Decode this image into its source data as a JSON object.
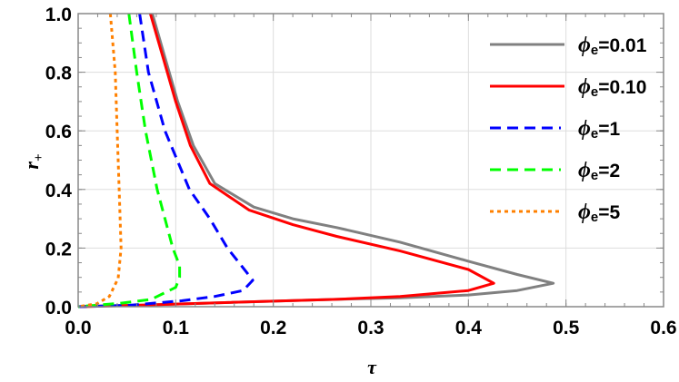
{
  "chart_data": {
    "type": "line",
    "title": "",
    "xlabel": "τ",
    "ylabel": "r",
    "ylabel_subscript": "+",
    "xlim": [
      0,
      0.6
    ],
    "ylim": [
      0,
      1.0
    ],
    "xticks": [
      "0.0",
      "0.1",
      "0.2",
      "0.3",
      "0.4",
      "0.5",
      "0.6"
    ],
    "yticks": [
      "0.0",
      "0.2",
      "0.4",
      "0.6",
      "0.8",
      "1.0"
    ],
    "grid": true,
    "legend_position": "top-right",
    "series": [
      {
        "name": "ϕe=0.01",
        "symbol": "ϕ",
        "sub": "e",
        "value": "=0.01",
        "color": "#808080",
        "style": "solid",
        "points": [
          [
            0.076,
            1.0
          ],
          [
            0.089,
            0.85
          ],
          [
            0.102,
            0.7
          ],
          [
            0.118,
            0.55
          ],
          [
            0.14,
            0.42
          ],
          [
            0.18,
            0.34
          ],
          [
            0.22,
            0.3
          ],
          [
            0.265,
            0.27
          ],
          [
            0.33,
            0.22
          ],
          [
            0.4,
            0.155
          ],
          [
            0.45,
            0.11
          ],
          [
            0.487,
            0.08
          ],
          [
            0.45,
            0.055
          ],
          [
            0.4,
            0.04
          ],
          [
            0.33,
            0.03
          ],
          [
            0.265,
            0.025
          ],
          [
            0.15,
            0.014
          ],
          [
            0.07,
            0.006
          ],
          [
            0,
            0
          ]
        ]
      },
      {
        "name": "ϕe=0.10",
        "symbol": "ϕ",
        "sub": "e",
        "value": "=0.10",
        "color": "#ff0000",
        "style": "solid",
        "points": [
          [
            0.074,
            1.0
          ],
          [
            0.087,
            0.85
          ],
          [
            0.1,
            0.7
          ],
          [
            0.115,
            0.55
          ],
          [
            0.135,
            0.42
          ],
          [
            0.175,
            0.33
          ],
          [
            0.22,
            0.28
          ],
          [
            0.265,
            0.24
          ],
          [
            0.33,
            0.19
          ],
          [
            0.4,
            0.127
          ],
          [
            0.426,
            0.08
          ],
          [
            0.4,
            0.055
          ],
          [
            0.33,
            0.035
          ],
          [
            0.265,
            0.025
          ],
          [
            0.15,
            0.014
          ],
          [
            0.07,
            0.006
          ],
          [
            0,
            0
          ]
        ]
      },
      {
        "name": "ϕe=1",
        "symbol": "ϕ",
        "sub": "e",
        "value": "=1",
        "color": "#0000ff",
        "style": "dashed",
        "points": [
          [
            0.063,
            1.0
          ],
          [
            0.072,
            0.8
          ],
          [
            0.089,
            0.6
          ],
          [
            0.114,
            0.4
          ],
          [
            0.135,
            0.3
          ],
          [
            0.153,
            0.2
          ],
          [
            0.172,
            0.12
          ],
          [
            0.179,
            0.09
          ],
          [
            0.169,
            0.055
          ],
          [
            0.14,
            0.035
          ],
          [
            0.106,
            0.02
          ],
          [
            0.053,
            0.005
          ],
          [
            0,
            0
          ]
        ]
      },
      {
        "name": "ϕe=2",
        "symbol": "ϕ",
        "sub": "e",
        "value": "=2",
        "color": "#00ff00",
        "style": "dashed",
        "points": [
          [
            0.052,
            1.0
          ],
          [
            0.06,
            0.8
          ],
          [
            0.069,
            0.6
          ],
          [
            0.081,
            0.4
          ],
          [
            0.097,
            0.2
          ],
          [
            0.104,
            0.14
          ],
          [
            0.104,
            0.1
          ],
          [
            0.1,
            0.066
          ],
          [
            0.075,
            0.025
          ],
          [
            0.044,
            0.012
          ],
          [
            0,
            0
          ]
        ]
      },
      {
        "name": "ϕe=5",
        "symbol": "ϕ",
        "sub": "e",
        "value": "=5",
        "color": "#ff8000",
        "style": "dotted",
        "points": [
          [
            0.033,
            1.0
          ],
          [
            0.038,
            0.8
          ],
          [
            0.04,
            0.6
          ],
          [
            0.042,
            0.4
          ],
          [
            0.044,
            0.2
          ],
          [
            0.041,
            0.097
          ],
          [
            0.032,
            0.035
          ],
          [
            0.019,
            0.01
          ],
          [
            0,
            0
          ]
        ]
      }
    ]
  }
}
